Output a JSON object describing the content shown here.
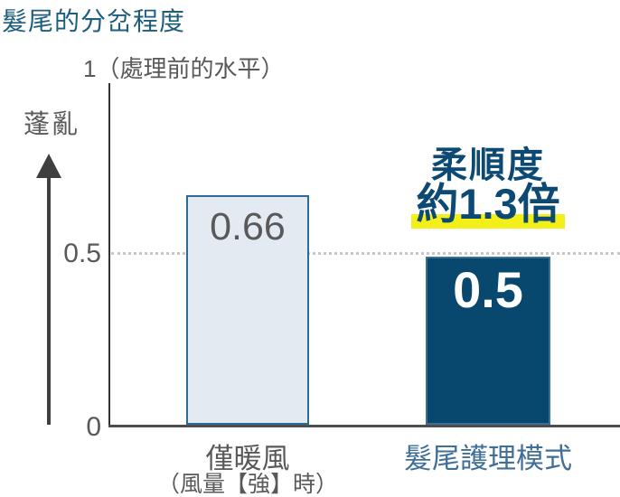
{
  "chart_data": {
    "type": "bar",
    "title": "髮尾的分岔程度",
    "reference_label": "1（處理前的水平）",
    "y_axis_caption": "蓬亂",
    "ylim": [
      0,
      1
    ],
    "ticks": [
      "0.5",
      "0"
    ],
    "categories": [
      "僅暖風",
      "髮尾護理模式"
    ],
    "category_notes": [
      "（風量【強】時）",
      ""
    ],
    "values": [
      0.66,
      0.5
    ],
    "bar_labels": [
      "0.66",
      "0.5"
    ],
    "annotation": {
      "line1": "柔順度",
      "line2": "約1.3倍"
    },
    "gridline": {
      "y": 0.5,
      "style": "dotted"
    },
    "legend": "none",
    "colors": {
      "title": "#1d5e7f",
      "bar_warm_air_fill": "#e4eaf2",
      "bar_warm_air_border": "#2f6b95",
      "bar_care_mode_fill": "#08486f",
      "annotation_text": "#0c4a74",
      "highlight_yellow": "#f3ef19",
      "gray_text": "#595959",
      "category2_text": "#3f6f99",
      "axis": "#333333",
      "gridline": "#c6c6c6"
    }
  }
}
